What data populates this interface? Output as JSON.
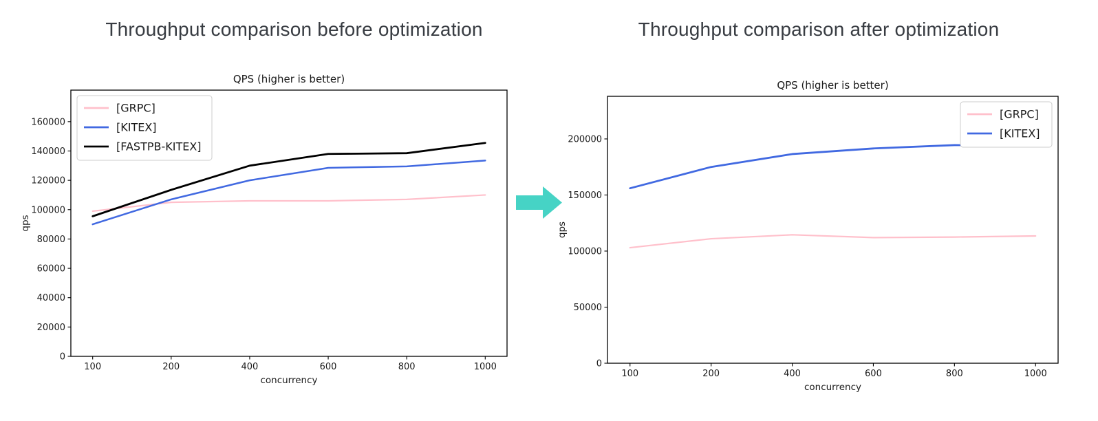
{
  "figures": [
    {
      "heading": "Throughput comparison before optimization"
    },
    {
      "heading": "Throughput comparison after optimization"
    }
  ],
  "arrow": {
    "color": "#46D3C5",
    "direction": "right"
  },
  "chart_data": [
    {
      "type": "line",
      "title": "QPS (higher is better)",
      "xlabel": "concurrency",
      "ylabel": "qps",
      "categories": [
        100,
        200,
        400,
        600,
        800,
        1000
      ],
      "x_scale": "categorical-even-spacing",
      "ylim": [
        0,
        181500
      ],
      "yticks": [
        0,
        20000,
        40000,
        60000,
        80000,
        100000,
        120000,
        140000,
        160000
      ],
      "grid": false,
      "legend": {
        "position": "top-left",
        "entries": [
          "[GRPC]",
          "[KITEX]",
          "[FASTPB-KITEX]"
        ]
      },
      "series": [
        {
          "name": "[GRPC]",
          "color": "#FFC0CB",
          "width": 2.2,
          "values": [
            99000,
            105000,
            106000,
            106000,
            107000,
            110000
          ]
        },
        {
          "name": "[KITEX]",
          "color": "#4169E1",
          "width": 2.5,
          "values": [
            90000,
            107000,
            120000,
            128500,
            129500,
            133500
          ]
        },
        {
          "name": "[FASTPB-KITEX]",
          "color": "#000000",
          "width": 2.8,
          "values": [
            95500,
            113500,
            130000,
            138000,
            138500,
            145500
          ]
        }
      ]
    },
    {
      "type": "line",
      "title": "QPS (higher is better)",
      "xlabel": "concurrency",
      "ylabel": "qps",
      "categories": [
        100,
        200,
        400,
        600,
        800,
        1000
      ],
      "x_scale": "categorical-even-spacing",
      "ylim": [
        0,
        238000
      ],
      "yticks": [
        0,
        50000,
        100000,
        150000,
        200000
      ],
      "grid": false,
      "legend": {
        "position": "top-right",
        "entries": [
          "[GRPC]",
          "[KITEX]"
        ]
      },
      "series": [
        {
          "name": "[GRPC]",
          "color": "#FFC0CB",
          "width": 2.2,
          "values": [
            103000,
            111000,
            114500,
            112000,
            112500,
            113500
          ]
        },
        {
          "name": "[KITEX]",
          "color": "#4169E1",
          "width": 2.8,
          "values": [
            156000,
            175000,
            186500,
            191500,
            194500,
            194000
          ]
        }
      ]
    }
  ]
}
